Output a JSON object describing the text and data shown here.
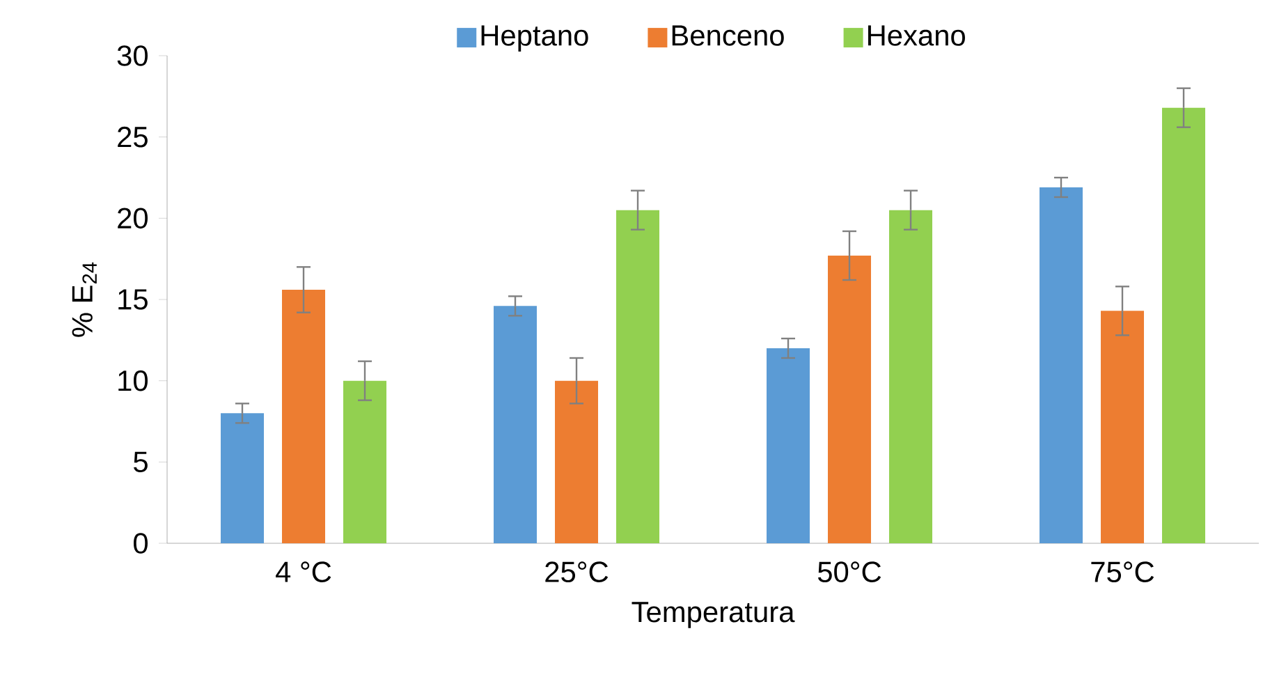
{
  "chart_data": {
    "type": "bar",
    "xlabel": "Temperatura",
    "ylabel": "% E$_{24}$",
    "categories": [
      "4 °C",
      "25°C",
      "50°C",
      "75°C"
    ],
    "series": [
      {
        "name": "Heptano",
        "color": "#5b9bd5",
        "values": [
          8.0,
          14.6,
          12.0,
          21.9
        ],
        "errors": [
          0.6,
          0.6,
          0.6,
          0.6
        ]
      },
      {
        "name": "Benceno",
        "color": "#ed7d31",
        "values": [
          15.6,
          10.0,
          17.7,
          14.3
        ],
        "errors": [
          1.4,
          1.4,
          1.5,
          1.5
        ]
      },
      {
        "name": "Hexano",
        "color": "#92d050",
        "values": [
          10.0,
          20.5,
          20.5,
          26.8
        ],
        "errors": [
          1.2,
          1.2,
          1.2,
          1.2
        ]
      }
    ],
    "ylim": [
      0,
      30
    ],
    "yticks": [
      0,
      5,
      10,
      15,
      20,
      25,
      30
    ],
    "grid": false,
    "legend": "top"
  }
}
